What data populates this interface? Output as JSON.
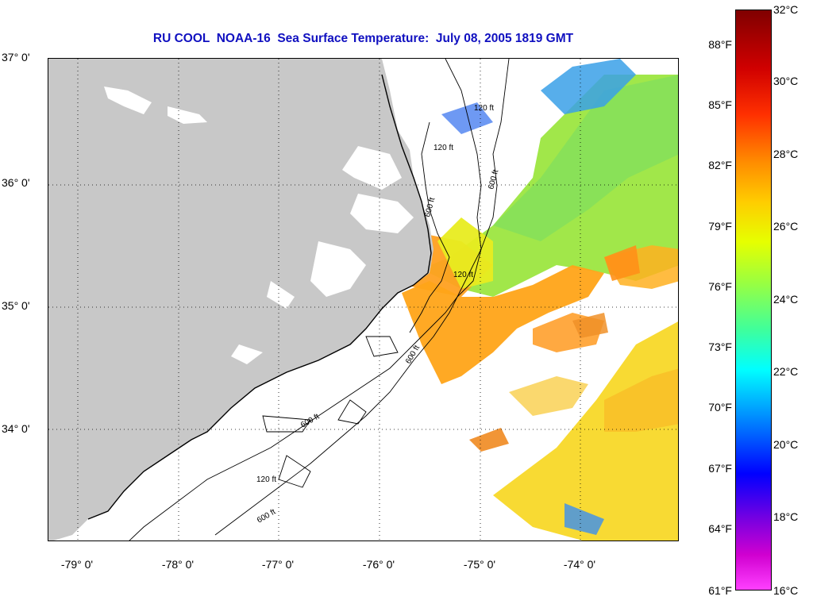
{
  "title": "RU COOL  NOAA-16  Sea Surface Temperature:  July 08, 2005 1819 GMT",
  "map": {
    "lat_labels": [
      "37° 0'",
      "36° 0'",
      "35° 0'",
      "34° 0'"
    ],
    "lon_labels": [
      "-79° 0'",
      "-78° 0'",
      "-77° 0'",
      "-76° 0'",
      "-75° 0'",
      "-74° 0'"
    ],
    "contour_labels": [
      "120 ft",
      "120 ft",
      "120 ft",
      "120 ft",
      "600 ft",
      "600 ft",
      "600 ft",
      "600 ft",
      "600 ft"
    ],
    "colors": {
      "land": "#c8c8c8",
      "water": "#ffffff",
      "grid": "#000000"
    }
  },
  "colorbar": {
    "fahrenheit_labels": [
      "88°F",
      "85°F",
      "82°F",
      "79°F",
      "76°F",
      "73°F",
      "70°F",
      "67°F",
      "64°F",
      "61°F"
    ],
    "celsius_labels": [
      "32°C",
      "30°C",
      "28°C",
      "26°C",
      "24°C",
      "22°C",
      "20°C",
      "18°C",
      "16°C"
    ]
  }
}
